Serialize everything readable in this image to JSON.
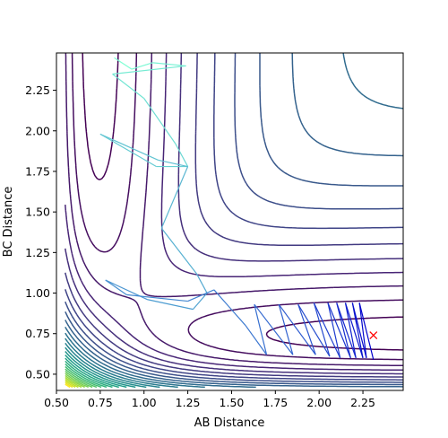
{
  "chart_data": {
    "type": "contour",
    "title": "",
    "xlabel": "AB Distance",
    "ylabel": "BC Distance",
    "xlim": [
      0.5,
      2.48
    ],
    "ylim": [
      0.4,
      2.48
    ],
    "xticks": [
      "0.50",
      "0.75",
      "1.00",
      "1.25",
      "1.50",
      "1.75",
      "2.00",
      "2.25"
    ],
    "yticks": [
      "0.50",
      "0.75",
      "1.00",
      "1.25",
      "1.50",
      "1.75",
      "2.00",
      "2.25"
    ],
    "grid": false,
    "legend": "none",
    "colormap": "viridis",
    "contour_level_count": 30,
    "trajectory": {
      "color_start": "#7fffd4",
      "color_end": "#0000cd",
      "points_xy": [
        [
          0.83,
          2.45
        ],
        [
          0.93,
          2.38
        ],
        [
          1.05,
          2.42
        ],
        [
          1.24,
          2.4
        ],
        [
          0.82,
          2.35
        ],
        [
          1.0,
          2.2
        ],
        [
          1.18,
          1.92
        ],
        [
          1.25,
          1.78
        ],
        [
          1.07,
          1.78
        ],
        [
          0.75,
          1.98
        ],
        [
          1.08,
          1.82
        ],
        [
          1.25,
          1.78
        ],
        [
          1.1,
          1.4
        ],
        [
          1.3,
          1.12
        ],
        [
          1.36,
          1.0
        ],
        [
          1.28,
          0.9
        ],
        [
          1.02,
          0.96
        ],
        [
          0.78,
          1.08
        ],
        [
          0.9,
          0.99
        ],
        [
          1.25,
          0.95
        ],
        [
          1.4,
          1.02
        ],
        [
          1.58,
          0.8
        ],
        [
          1.7,
          0.62
        ],
        [
          1.63,
          0.93
        ],
        [
          1.85,
          0.62
        ],
        [
          1.77,
          0.93
        ],
        [
          1.98,
          0.62
        ],
        [
          1.88,
          0.93
        ],
        [
          2.06,
          0.61
        ],
        [
          1.97,
          0.94
        ],
        [
          2.12,
          0.6
        ],
        [
          2.05,
          0.94
        ],
        [
          2.18,
          0.6
        ],
        [
          2.1,
          0.94
        ],
        [
          2.21,
          0.6
        ],
        [
          2.15,
          0.94
        ],
        [
          2.25,
          0.6
        ],
        [
          2.19,
          0.94
        ],
        [
          2.27,
          0.6
        ],
        [
          2.23,
          0.94
        ],
        [
          2.31,
          0.59
        ]
      ]
    },
    "end_marker": {
      "x": 2.31,
      "y": 0.74,
      "symbol": "x",
      "color": "#ff0000"
    }
  }
}
